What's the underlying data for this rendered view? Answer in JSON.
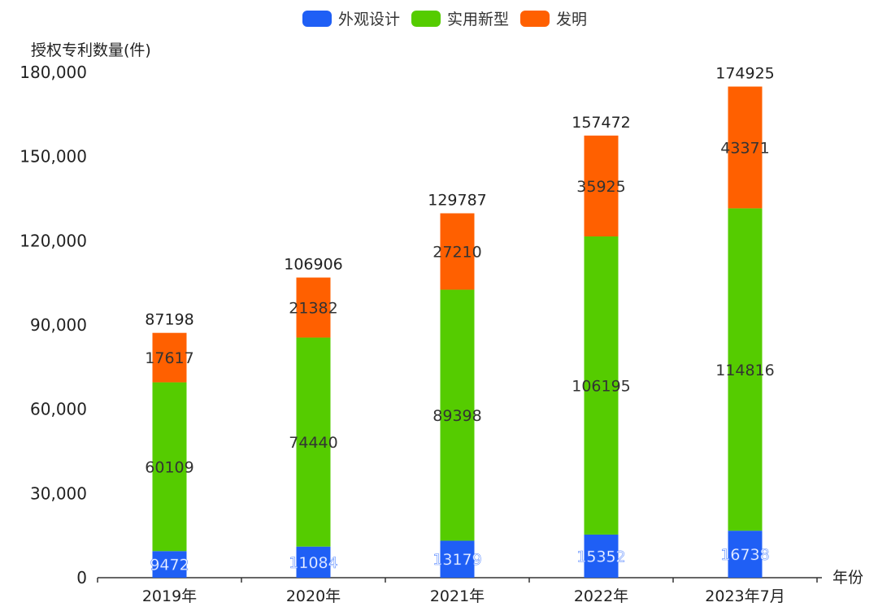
{
  "chart_data": {
    "type": "bar",
    "stacked": true,
    "categories": [
      "2019年",
      "2020年",
      "2021年",
      "2022年",
      "2023年7月"
    ],
    "series": [
      {
        "name": "外观设计",
        "color": "#1f5ff5",
        "values": [
          9472,
          11084,
          13179,
          15352,
          16738
        ]
      },
      {
        "name": "实用新型",
        "color": "#55cc00",
        "values": [
          60109,
          74440,
          89398,
          106195,
          114816
        ]
      },
      {
        "name": "发明",
        "color": "#ff6000",
        "values": [
          17617,
          21382,
          27210,
          35925,
          43371
        ]
      }
    ],
    "totals": [
      87198,
      106906,
      129787,
      157472,
      174925
    ],
    "ylabel": "授权专利数量(件)",
    "xlabel": "年份",
    "ylim": [
      0,
      180000
    ],
    "yticks": [
      0,
      30000,
      60000,
      90000,
      120000,
      150000,
      180000
    ],
    "ytick_labels": [
      "0",
      "30,000",
      "60,000",
      "90,000",
      "120,000",
      "150,000",
      "180,000"
    ],
    "grid": false,
    "legend_position": "top-center"
  }
}
